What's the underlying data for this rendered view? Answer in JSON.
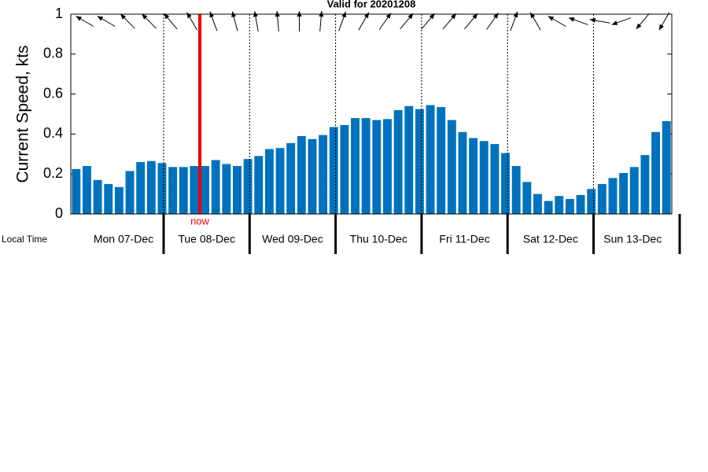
{
  "chart_data": {
    "type": "bar",
    "title": "Valid for 20201208",
    "ylabel": "Current Speed, kts",
    "xlabel": "Local Time",
    "day_labels": [
      "Mon 07-Dec",
      "Tue 08-Dec",
      "Wed 09-Dec",
      "Thu 10-Dec",
      "Fri 11-Dec",
      "Sat 12-Dec",
      "Sun 13-Dec"
    ],
    "now_label": "now",
    "color": "#0072bd",
    "values": [
      0.225,
      0.24,
      0.17,
      0.15,
      0.135,
      0.215,
      0.26,
      0.265,
      0.255,
      0.235,
      0.235,
      0.24,
      0.24,
      0.27,
      0.25,
      0.24,
      0.275,
      0.29,
      0.325,
      0.33,
      0.355,
      0.39,
      0.375,
      0.395,
      0.435,
      0.445,
      0.48,
      0.48,
      0.47,
      0.475,
      0.52,
      0.54,
      0.525,
      0.545,
      0.535,
      0.47,
      0.41,
      0.38,
      0.365,
      0.35,
      0.305,
      0.24,
      0.16,
      0.1,
      0.065,
      0.09,
      0.075,
      0.095,
      0.125,
      0.15,
      0.18,
      0.205,
      0.235,
      0.295,
      0.41,
      0.465
    ],
    "directions": [
      300,
      300,
      315,
      315,
      320,
      330,
      340,
      345,
      350,
      355,
      0,
      5,
      20,
      30,
      35,
      40,
      40,
      40,
      40,
      35,
      20,
      330,
      300,
      290,
      280,
      250,
      220,
      210
    ],
    "ylim": [
      0,
      1
    ],
    "yticks": [
      0,
      0.2,
      0.4,
      0.6,
      0.8,
      1
    ]
  }
}
